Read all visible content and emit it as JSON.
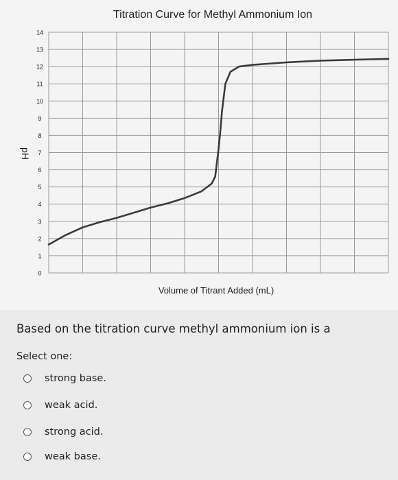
{
  "chart_data": {
    "type": "line",
    "title": "Titration Curve for Methyl Ammonium Ion",
    "xlabel": "Volume of Titrant Added (mL)",
    "ylabel": "pH",
    "ylim": [
      0,
      14
    ],
    "xlim": [
      0,
      10
    ],
    "y_ticks": [
      "0",
      "1",
      "2",
      "3",
      "4",
      "5",
      "6",
      "7",
      "8",
      "9",
      "10",
      "11",
      "12",
      "13",
      "14"
    ],
    "x_ticks_labeled": false,
    "grid": true,
    "series": [
      {
        "x": [
          0,
          0.5,
          1,
          1.5,
          2,
          2.5,
          3,
          3.5,
          4,
          4.5,
          4.8,
          4.9,
          5.0,
          5.05,
          5.1,
          5.2,
          5.35,
          5.6,
          6,
          7,
          8,
          9,
          10
        ],
        "y": [
          1.65,
          2.2,
          2.65,
          2.95,
          3.2,
          3.5,
          3.8,
          4.05,
          4.35,
          4.75,
          5.2,
          5.6,
          7.2,
          8.2,
          9.4,
          11.0,
          11.7,
          12.0,
          12.1,
          12.25,
          12.35,
          12.4,
          12.45
        ]
      }
    ]
  },
  "question": {
    "text": "Based on the titration curve methyl ammonium ion is a",
    "prompt": "Select one:",
    "options": [
      {
        "label": "strong base."
      },
      {
        "label": "weak acid."
      },
      {
        "label": "strong acid."
      },
      {
        "label": "weak base."
      }
    ]
  },
  "colors": {
    "background": "#ebebec",
    "chart_background": "#f4f4f5",
    "grid": "#9a9a9a",
    "curve": "#3a3a3a"
  }
}
